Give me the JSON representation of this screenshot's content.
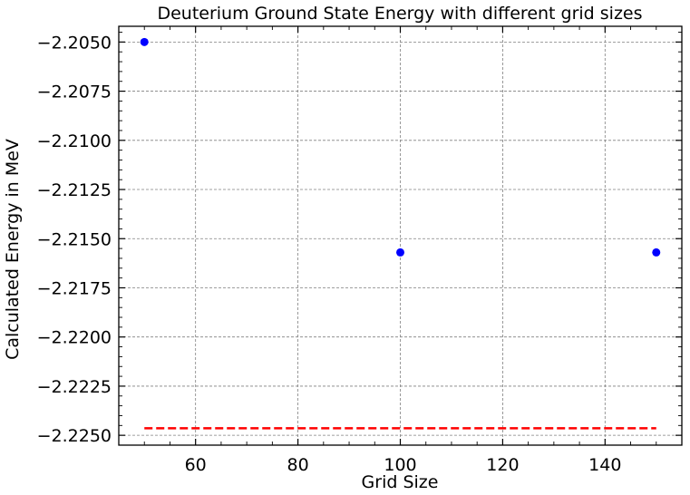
{
  "chart_data": {
    "type": "scatter",
    "title": "Deuterium Ground State Energy with different grid sizes",
    "xlabel": "Grid Size",
    "ylabel": "Calculated Energy in MeV",
    "xlim": [
      45,
      155
    ],
    "ylim": [
      -2.2255,
      -2.2042
    ],
    "x_ticks": [
      60,
      80,
      100,
      120,
      140
    ],
    "x_tick_labels": [
      "60",
      "80",
      "100",
      "120",
      "140"
    ],
    "y_ticks": [
      -2.205,
      -2.2075,
      -2.21,
      -2.2125,
      -2.215,
      -2.2175,
      -2.22,
      -2.2225,
      -2.225
    ],
    "y_tick_labels": [
      "−2.2050",
      "−2.2075",
      "−2.2100",
      "−2.2125",
      "−2.2150",
      "−2.2175",
      "−2.2200",
      "−2.2225",
      "−2.2250"
    ],
    "grid": true,
    "series": [
      {
        "kind": "scatter",
        "color": "#0000ff",
        "x": [
          50,
          100,
          150
        ],
        "y": [
          -2.205,
          -2.2157,
          -2.2157
        ]
      },
      {
        "kind": "dashed-line",
        "color": "#ff0000",
        "x": [
          50,
          150
        ],
        "y": [
          -2.22464,
          -2.22464
        ]
      }
    ]
  }
}
